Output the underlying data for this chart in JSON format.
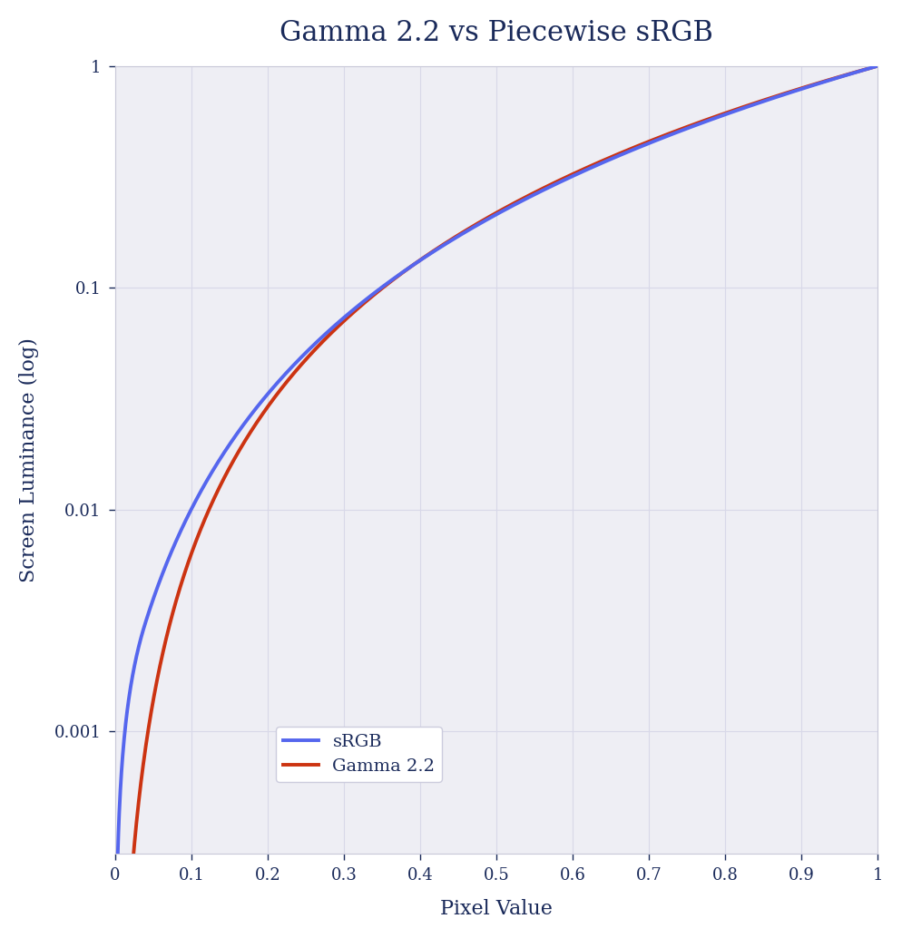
{
  "title": "Gamma 2.2 vs Piecewise sRGB",
  "xlabel": "Pixel Value",
  "ylabel": "Screen Luminance (log)",
  "xlim": [
    0,
    1
  ],
  "ylim": [
    0.00028,
    1.0
  ],
  "srgb_color": "#5566ee",
  "gamma_color": "#cc3311",
  "fig_bg_color": "#ffffff",
  "plot_bg_color": "#eeeef4",
  "text_color": "#1a2a5a",
  "grid_color": "#d8d8e8",
  "line_width": 2.8,
  "title_fontsize": 22,
  "label_fontsize": 16,
  "tick_fontsize": 13,
  "legend_fontsize": 14,
  "x_ticks": [
    0,
    0.1,
    0.2,
    0.3,
    0.4,
    0.5,
    0.6,
    0.7,
    0.8,
    0.9,
    1
  ],
  "y_ticks": [
    0.001,
    0.01,
    0.1,
    1
  ]
}
